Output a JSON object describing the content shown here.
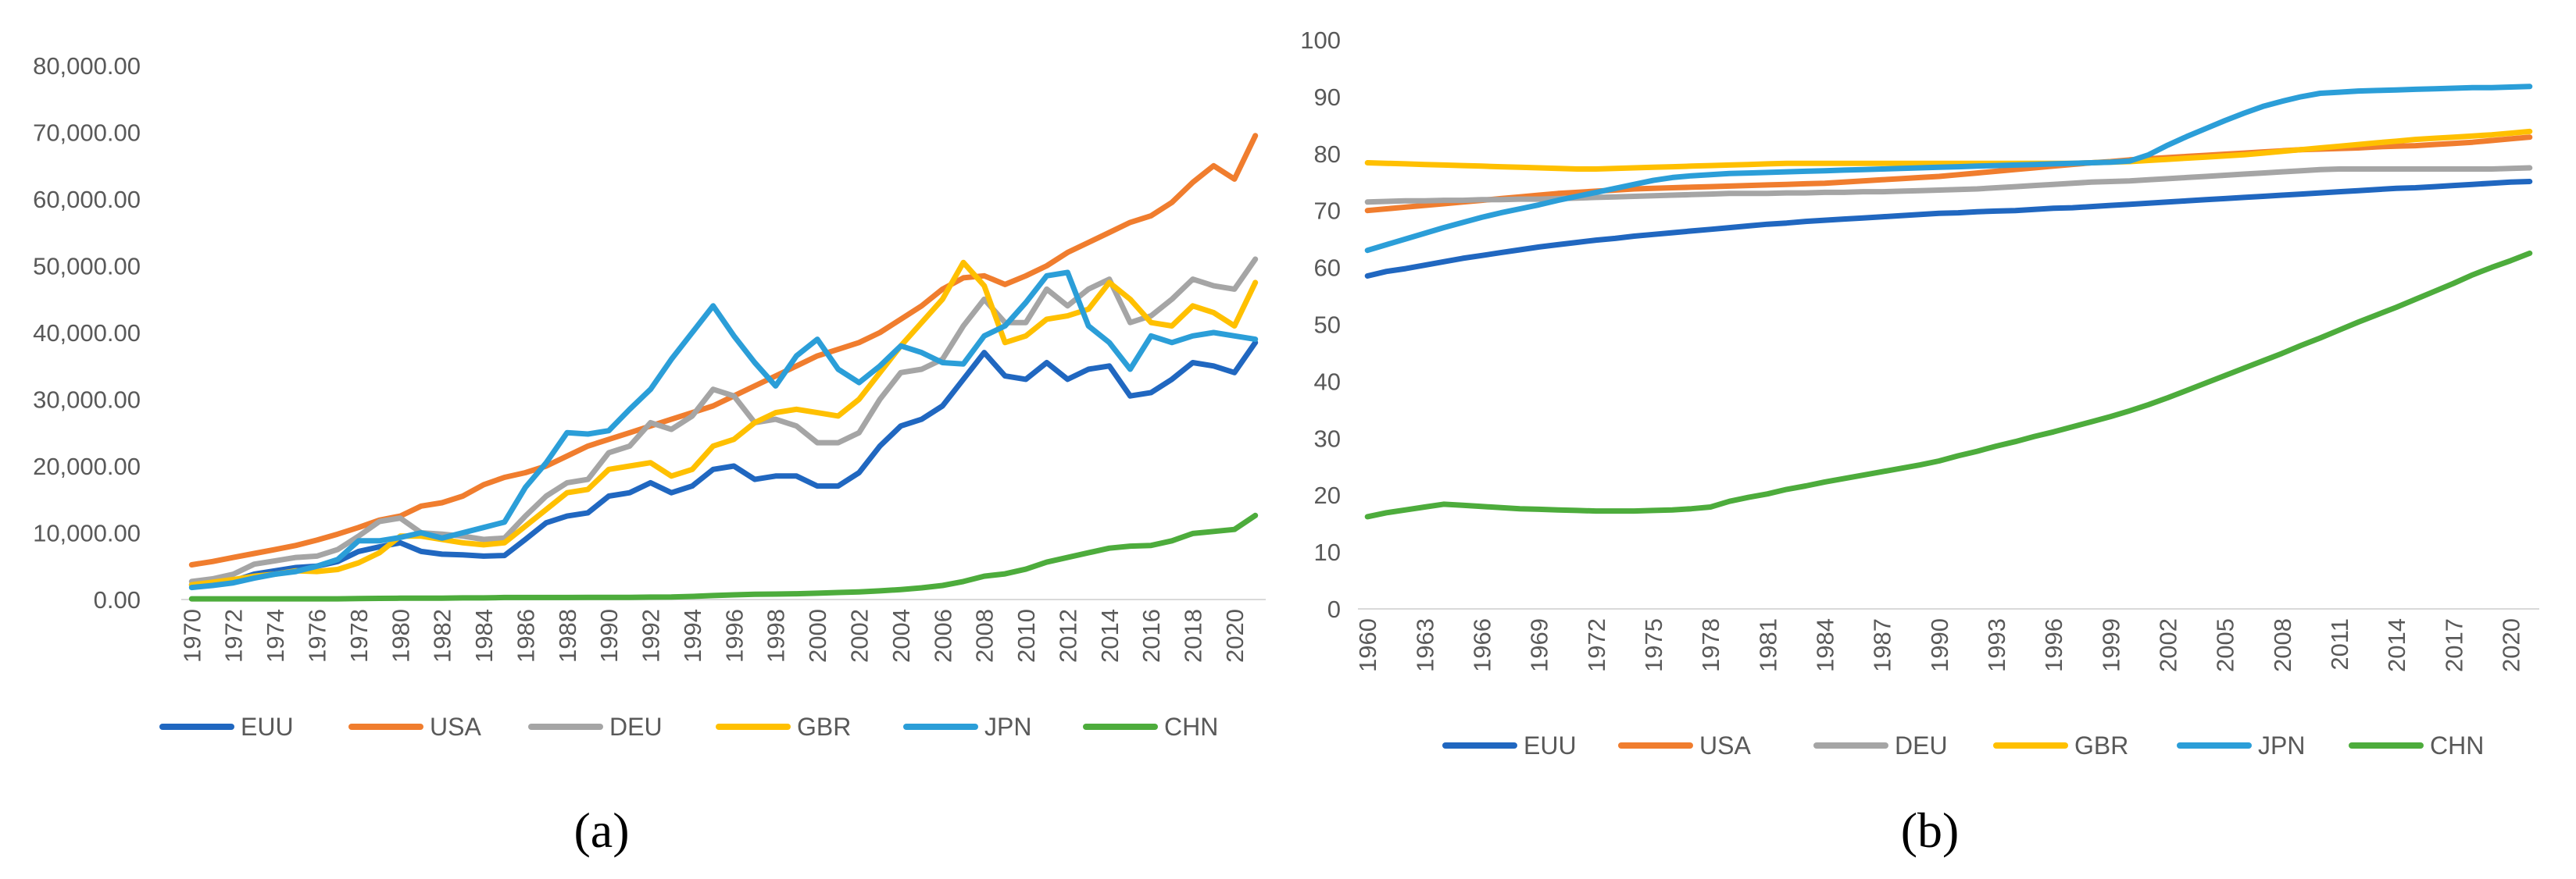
{
  "colors": {
    "EUU": "#2067c0",
    "USA": "#f07d2e",
    "DEU": "#a5a5a5",
    "GBR": "#ffc000",
    "JPN": "#2b9ed8",
    "CHN": "#4dac3c",
    "axis": "#d9d9d9",
    "text": "#595959"
  },
  "legend": [
    "EUU",
    "USA",
    "DEU",
    "GBR",
    "JPN",
    "CHN"
  ],
  "chart_data": [
    {
      "type": "line",
      "panel": "(a)",
      "ylim": [
        0,
        80000
      ],
      "y_ticks": [
        "0.00",
        "10,000.00",
        "20,000.00",
        "30,000.00",
        "40,000.00",
        "50,000.00",
        "60,000.00",
        "70,000.00",
        "80,000.00"
      ],
      "x": [
        1970,
        1971,
        1972,
        1973,
        1974,
        1975,
        1976,
        1977,
        1978,
        1979,
        1980,
        1981,
        1982,
        1983,
        1984,
        1985,
        1986,
        1987,
        1988,
        1989,
        1990,
        1991,
        1992,
        1993,
        1994,
        1995,
        1996,
        1997,
        1998,
        1999,
        2000,
        2001,
        2002,
        2003,
        2004,
        2005,
        2006,
        2007,
        2008,
        2009,
        2010,
        2011,
        2012,
        2013,
        2014,
        2015,
        2016,
        2017,
        2018,
        2019,
        2020,
        2021
      ],
      "x_ticks": [
        "1970",
        "1972",
        "1974",
        "1976",
        "1978",
        "1980",
        "1982",
        "1984",
        "1986",
        "1988",
        "1990",
        "1992",
        "1994",
        "1996",
        "1998",
        "2000",
        "2002",
        "2004",
        "2006",
        "2008",
        "2010",
        "2012",
        "2014",
        "2016",
        "2018",
        "2020"
      ],
      "series": [
        {
          "name": "EUU",
          "values": [
            2200,
            2500,
            2800,
            3800,
            4300,
            4800,
            5000,
            5700,
            7200,
            7900,
            8500,
            7200,
            6800,
            6700,
            6500,
            6600,
            9000,
            11500,
            12500,
            13000,
            15500,
            16000,
            17500,
            16000,
            17000,
            19500,
            20000,
            18000,
            18500,
            18500,
            17000,
            17000,
            19000,
            23000,
            26000,
            27000,
            29000,
            33000,
            37000,
            33500,
            33000,
            35500,
            33000,
            34500,
            35000,
            30500,
            31000,
            33000,
            35500,
            35000,
            34000,
            38500
          ]
        },
        {
          "name": "USA",
          "values": [
            5200,
            5700,
            6300,
            6900,
            7500,
            8100,
            8900,
            9800,
            10800,
            11900,
            12500,
            14000,
            14500,
            15500,
            17200,
            18300,
            19000,
            20000,
            21500,
            23000,
            24000,
            25000,
            26000,
            27000,
            28000,
            29000,
            30500,
            32000,
            33500,
            35000,
            36500,
            37500,
            38500,
            40000,
            42000,
            44000,
            46500,
            48200,
            48500,
            47200,
            48500,
            50000,
            52000,
            53500,
            55000,
            56500,
            57500,
            59500,
            62500,
            65000,
            63000,
            69500
          ]
        },
        {
          "name": "DEU",
          "values": [
            2700,
            3100,
            3800,
            5300,
            5800,
            6300,
            6500,
            7500,
            9500,
            11700,
            12200,
            10000,
            9800,
            9500,
            9000,
            9200,
            12500,
            15500,
            17500,
            18000,
            22000,
            23000,
            26500,
            25500,
            27500,
            31500,
            30500,
            26500,
            27000,
            26000,
            23500,
            23500,
            25000,
            30000,
            34000,
            34500,
            36000,
            41000,
            45000,
            41500,
            41500,
            46500,
            44000,
            46500,
            48000,
            41500,
            42500,
            45000,
            48000,
            47000,
            46500,
            51000
          ]
        },
        {
          "name": "GBR",
          "values": [
            2200,
            2600,
            3000,
            3500,
            3800,
            4300,
            4200,
            4500,
            5500,
            7000,
            9500,
            9500,
            9000,
            8500,
            8200,
            8500,
            11000,
            13500,
            16000,
            16500,
            19500,
            20000,
            20500,
            18500,
            19500,
            23000,
            24000,
            26500,
            28000,
            28500,
            28000,
            27500,
            30000,
            34000,
            38000,
            41500,
            45000,
            50500,
            47000,
            38500,
            39500,
            42000,
            42500,
            43500,
            47500,
            45000,
            41500,
            41000,
            44000,
            43000,
            41000,
            47500
          ]
        },
        {
          "name": "JPN",
          "values": [
            1800,
            2100,
            2500,
            3200,
            3800,
            4200,
            5000,
            6000,
            8800,
            8800,
            9300,
            10000,
            9200,
            10000,
            10800,
            11600,
            16800,
            20500,
            25000,
            24800,
            25300,
            28500,
            31500,
            36000,
            40000,
            44000,
            39500,
            35500,
            32000,
            36500,
            39000,
            34500,
            32500,
            35000,
            38000,
            37000,
            35500,
            35300,
            39500,
            41000,
            44500,
            48500,
            49000,
            41000,
            38500,
            34500,
            39500,
            38500,
            39500,
            40000,
            39500,
            39000
          ]
        },
        {
          "name": "CHN",
          "values": [
            100,
            100,
            100,
            100,
            100,
            100,
            100,
            100,
            150,
            180,
            200,
            200,
            200,
            250,
            250,
            300,
            300,
            300,
            300,
            320,
            330,
            330,
            360,
            380,
            470,
            600,
            700,
            780,
            820,
            870,
            950,
            1050,
            1150,
            1300,
            1500,
            1750,
            2100,
            2700,
            3500,
            3850,
            4550,
            5600,
            6300,
            7000,
            7700,
            8000,
            8100,
            8800,
            9900,
            10200,
            10500,
            12600
          ]
        }
      ]
    },
    {
      "type": "line",
      "panel": "(b)",
      "ylim": [
        0,
        100
      ],
      "y_ticks": [
        "0",
        "10",
        "20",
        "30",
        "40",
        "50",
        "60",
        "70",
        "80",
        "90",
        "100"
      ],
      "x": [
        1960,
        1961,
        1962,
        1963,
        1964,
        1965,
        1966,
        1967,
        1968,
        1969,
        1970,
        1971,
        1972,
        1973,
        1974,
        1975,
        1976,
        1977,
        1978,
        1979,
        1980,
        1981,
        1982,
        1983,
        1984,
        1985,
        1986,
        1987,
        1988,
        1989,
        1990,
        1991,
        1992,
        1993,
        1994,
        1995,
        1996,
        1997,
        1998,
        1999,
        2000,
        2001,
        2002,
        2003,
        2004,
        2005,
        2006,
        2007,
        2008,
        2009,
        2010,
        2011,
        2012,
        2013,
        2014,
        2015,
        2016,
        2017,
        2018,
        2019,
        2020,
        2021
      ],
      "x_ticks": [
        "1960",
        "1963",
        "1966",
        "1969",
        "1972",
        "1975",
        "1978",
        "1981",
        "1984",
        "1987",
        "1990",
        "1993",
        "1996",
        "1999",
        "2002",
        "2005",
        "2008",
        "2011",
        "2014",
        "2017",
        "2020"
      ],
      "series": [
        {
          "name": "EUU",
          "values": [
            58.5,
            59.3,
            59.8,
            60.4,
            61.0,
            61.6,
            62.1,
            62.6,
            63.1,
            63.6,
            64.0,
            64.4,
            64.8,
            65.1,
            65.5,
            65.8,
            66.1,
            66.4,
            66.7,
            67.0,
            67.3,
            67.6,
            67.8,
            68.1,
            68.3,
            68.5,
            68.7,
            68.9,
            69.1,
            69.3,
            69.5,
            69.6,
            69.8,
            69.9,
            70.0,
            70.2,
            70.4,
            70.5,
            70.7,
            70.9,
            71.1,
            71.3,
            71.5,
            71.7,
            71.9,
            72.1,
            72.3,
            72.5,
            72.7,
            72.9,
            73.1,
            73.3,
            73.5,
            73.7,
            73.9,
            74.0,
            74.2,
            74.4,
            74.6,
            74.8,
            75.0,
            75.1
          ]
        },
        {
          "name": "USA",
          "values": [
            70.0,
            70.3,
            70.6,
            70.9,
            71.2,
            71.5,
            71.8,
            72.1,
            72.4,
            72.7,
            73.0,
            73.2,
            73.4,
            73.6,
            73.8,
            73.9,
            74.0,
            74.1,
            74.2,
            74.3,
            74.4,
            74.5,
            74.6,
            74.7,
            74.8,
            75.0,
            75.2,
            75.4,
            75.6,
            75.8,
            76.0,
            76.3,
            76.6,
            76.9,
            77.2,
            77.5,
            77.8,
            78.1,
            78.4,
            78.6,
            78.9,
            79.1,
            79.3,
            79.5,
            79.7,
            79.9,
            80.1,
            80.3,
            80.5,
            80.7,
            80.8,
            80.9,
            81.0,
            81.2,
            81.3,
            81.4,
            81.6,
            81.8,
            82.0,
            82.3,
            82.6,
            82.9
          ]
        },
        {
          "name": "DEU",
          "values": [
            71.5,
            71.6,
            71.7,
            71.7,
            71.8,
            71.8,
            71.9,
            71.9,
            72.0,
            72.0,
            72.1,
            72.2,
            72.3,
            72.4,
            72.5,
            72.6,
            72.7,
            72.8,
            72.9,
            73.0,
            73.0,
            73.0,
            73.1,
            73.1,
            73.2,
            73.2,
            73.3,
            73.3,
            73.4,
            73.5,
            73.6,
            73.7,
            73.8,
            74.0,
            74.2,
            74.4,
            74.6,
            74.8,
            75.0,
            75.1,
            75.2,
            75.4,
            75.6,
            75.8,
            76.0,
            76.2,
            76.4,
            76.6,
            76.8,
            77.0,
            77.2,
            77.3,
            77.3,
            77.3,
            77.3,
            77.3,
            77.3,
            77.3,
            77.3,
            77.3,
            77.4,
            77.5
          ]
        },
        {
          "name": "GBR",
          "values": [
            78.4,
            78.3,
            78.2,
            78.1,
            78.0,
            77.9,
            77.8,
            77.7,
            77.6,
            77.5,
            77.4,
            77.3,
            77.3,
            77.4,
            77.5,
            77.6,
            77.7,
            77.8,
            77.9,
            78.0,
            78.1,
            78.2,
            78.3,
            78.3,
            78.3,
            78.3,
            78.3,
            78.3,
            78.3,
            78.3,
            78.3,
            78.3,
            78.3,
            78.3,
            78.3,
            78.3,
            78.3,
            78.3,
            78.4,
            78.5,
            78.6,
            78.8,
            79.0,
            79.2,
            79.4,
            79.6,
            79.8,
            80.1,
            80.4,
            80.7,
            81.0,
            81.3,
            81.6,
            81.9,
            82.2,
            82.5,
            82.7,
            82.9,
            83.1,
            83.3,
            83.6,
            83.9
          ]
        },
        {
          "name": "JPN",
          "values": [
            63.0,
            64.0,
            65.0,
            66.0,
            67.0,
            67.9,
            68.8,
            69.6,
            70.3,
            71.0,
            71.8,
            72.5,
            73.2,
            73.9,
            74.6,
            75.3,
            75.8,
            76.1,
            76.3,
            76.5,
            76.6,
            76.7,
            76.8,
            76.9,
            77.0,
            77.1,
            77.2,
            77.3,
            77.4,
            77.5,
            77.6,
            77.7,
            77.8,
            77.9,
            78.0,
            78.1,
            78.2,
            78.3,
            78.4,
            78.5,
            78.7,
            79.8,
            81.5,
            83.0,
            84.4,
            85.8,
            87.1,
            88.3,
            89.2,
            90.0,
            90.6,
            90.8,
            91.0,
            91.1,
            91.2,
            91.3,
            91.4,
            91.5,
            91.6,
            91.6,
            91.7,
            91.8
          ]
        },
        {
          "name": "CHN",
          "values": [
            16.2,
            16.9,
            17.4,
            17.9,
            18.4,
            18.2,
            18.0,
            17.8,
            17.6,
            17.5,
            17.4,
            17.3,
            17.2,
            17.2,
            17.2,
            17.3,
            17.4,
            17.6,
            17.9,
            18.9,
            19.6,
            20.2,
            21.0,
            21.6,
            22.3,
            22.9,
            23.5,
            24.1,
            24.7,
            25.3,
            26.0,
            26.9,
            27.7,
            28.6,
            29.4,
            30.3,
            31.1,
            32.0,
            32.9,
            33.8,
            34.8,
            35.9,
            37.1,
            38.4,
            39.7,
            41.0,
            42.3,
            43.6,
            44.9,
            46.3,
            47.6,
            49.0,
            50.4,
            51.7,
            53.0,
            54.4,
            55.8,
            57.2,
            58.7,
            60.0,
            61.2,
            62.5
          ]
        }
      ]
    }
  ]
}
